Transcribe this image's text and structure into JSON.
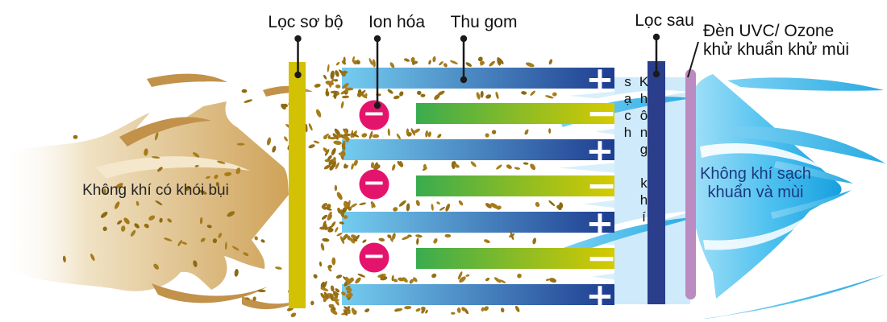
{
  "diagram": {
    "labels": {
      "pre_filter": "Lọc sơ bộ",
      "ionization": "Ion hóa",
      "collection": "Thu gom",
      "post_filter": "Lọc sau",
      "uvc_lamp_line1": "Đèn UVC/ Ozone",
      "uvc_lamp_line2": "khử khuẩn khử mùi",
      "input_air": "Không khí có khói bụi",
      "clean_air_vertical": "Không khí sạch",
      "output_air_line1": "Không khí sạch",
      "output_air_line2": "khuẩn và mùi"
    },
    "collector": {
      "positive_plate_count": 4,
      "negative_plate_count": 3,
      "positive_symbol": "+",
      "negative_symbol": "−"
    },
    "ionizer": {
      "count": 3,
      "symbol": "−"
    },
    "colors": {
      "pre_filter_bar": "#d3c103",
      "positive_plate_start": "#74cdf0",
      "positive_plate_end": "#1e3d90",
      "negative_plate_start": "#39ac4e",
      "negative_plate_end": "#d6ca00",
      "ionizer": "#e4146c",
      "post_filter_bar": "#2a3e8c",
      "uvc_lamp": "#ba8bc0",
      "dust": "#9e7418",
      "dirty_air_arrow": "#cfa258",
      "clean_air_arrow": "#29abe2",
      "callout": "#1a1a1a"
    }
  }
}
